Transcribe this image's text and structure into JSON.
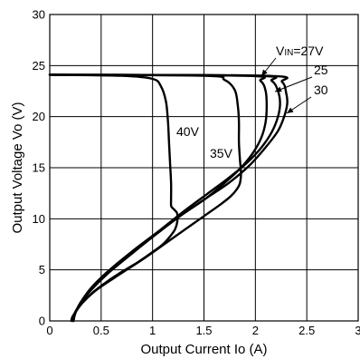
{
  "chart_data": {
    "type": "line",
    "xlabel": "Output Current Io (A)",
    "ylabel": "Output Voltage Vo (V)",
    "xlim": [
      0,
      3
    ],
    "ylim": [
      0,
      30
    ],
    "xticks": [
      "0",
      "0.5",
      "1",
      "1.5",
      "2",
      "2.5",
      "3"
    ],
    "yticks": [
      "0",
      "5",
      "10",
      "15",
      "20",
      "25",
      "30"
    ],
    "grid": true,
    "series": [
      {
        "name": "40V",
        "x": [
          0,
          0.7,
          1.0,
          1.08,
          1.13,
          1.15,
          1.16,
          1.17,
          1.18,
          1.18,
          1.18,
          1.19,
          1.2,
          1.22,
          1.24,
          1.24,
          1.22,
          1.18,
          1.1,
          0.98,
          0.85,
          0.7,
          0.55,
          0.42,
          0.32,
          0.26,
          0.22,
          0.21
        ],
        "y": [
          24.1,
          24.0,
          23.7,
          23.0,
          21.5,
          19.5,
          17.5,
          15.5,
          13.5,
          12.0,
          11.3,
          11.1,
          11.0,
          10.8,
          10.5,
          9.7,
          9.0,
          8.4,
          7.5,
          6.6,
          5.7,
          4.8,
          3.8,
          2.8,
          1.8,
          1.0,
          0.4,
          0.0
        ]
      },
      {
        "name": "35V",
        "x": [
          0,
          1.5,
          1.7,
          1.8,
          1.83,
          1.84,
          1.84,
          1.85,
          1.86,
          1.85,
          1.82,
          1.76,
          1.66,
          1.52,
          1.35,
          1.14,
          0.9,
          0.64,
          0.45,
          0.33,
          0.26,
          0.23,
          0.22
        ],
        "y": [
          24.1,
          24.0,
          23.6,
          22.6,
          21.0,
          19.5,
          17.5,
          15.8,
          14.5,
          13.5,
          12.9,
          12.2,
          11.4,
          10.4,
          9.2,
          7.7,
          6.0,
          4.3,
          3.0,
          1.9,
          1.1,
          0.4,
          0.0
        ]
      },
      {
        "name": "VIN=27V",
        "x": [
          0,
          1.9,
          2.05,
          2.1,
          2.11,
          2.1,
          2.06,
          1.98,
          1.86,
          1.7,
          1.52,
          1.3,
          1.05,
          0.8,
          0.56,
          0.4,
          0.3,
          0.25,
          0.23
        ],
        "y": [
          24.1,
          24.0,
          23.5,
          22.5,
          21.0,
          19.5,
          18.0,
          16.5,
          15.0,
          13.5,
          12.0,
          10.5,
          8.7,
          6.8,
          4.8,
          3.2,
          1.8,
          0.8,
          0.0
        ]
      },
      {
        "name": "25",
        "x": [
          0,
          2.0,
          2.16,
          2.22,
          2.24,
          2.22,
          2.16,
          2.06,
          1.92,
          1.74,
          1.54,
          1.3,
          1.05,
          0.8,
          0.56,
          0.4,
          0.3,
          0.25,
          0.23
        ],
        "y": [
          24.1,
          24.0,
          23.5,
          22.5,
          21.3,
          20.0,
          18.5,
          17.0,
          15.5,
          14.0,
          12.5,
          10.7,
          8.7,
          6.7,
          4.7,
          3.1,
          1.8,
          0.8,
          0.0
        ]
      },
      {
        "name": "30",
        "x": [
          0,
          2.1,
          2.26,
          2.3,
          2.31,
          2.28,
          2.22,
          2.1,
          1.94,
          1.74,
          1.52,
          1.3,
          1.05,
          0.8,
          0.56,
          0.4,
          0.3,
          0.25,
          0.23
        ],
        "y": [
          24.1,
          24.0,
          23.4,
          22.3,
          21.3,
          20.0,
          18.6,
          17.0,
          15.2,
          13.5,
          12.0,
          10.5,
          8.6,
          6.6,
          4.6,
          3.0,
          1.7,
          0.8,
          0.0
        ]
      }
    ],
    "annotations": [
      {
        "label": "V",
        "sub": "IN",
        "rest": "=27V",
        "series": "VIN=27V"
      },
      {
        "label": "25",
        "series": "25"
      },
      {
        "label": "30",
        "series": "30"
      },
      {
        "label": "40V",
        "series": "40V"
      },
      {
        "label": "35V",
        "series": "35V"
      }
    ]
  }
}
